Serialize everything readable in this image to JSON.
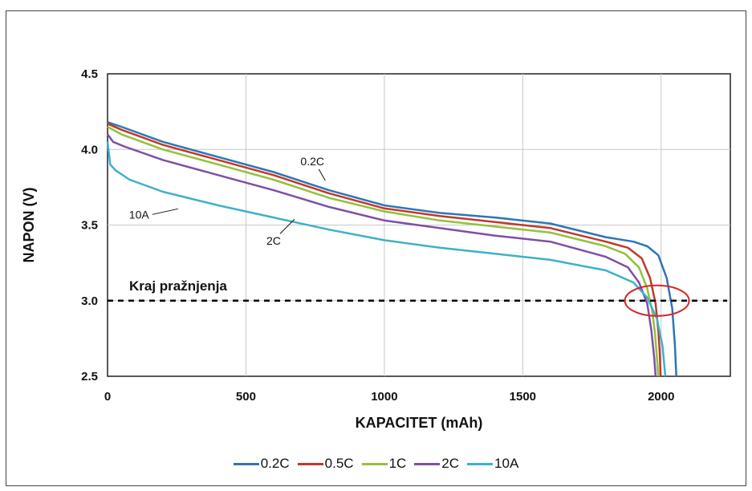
{
  "chart_data": {
    "type": "line",
    "xlabel": "KAPACITET (mAh)",
    "ylabel": "NAPON (V)",
    "xlim": [
      0,
      2250
    ],
    "ylim": [
      2.5,
      4.5
    ],
    "xticks": [
      "0",
      "500",
      "1000",
      "1500",
      "2000"
    ],
    "yticks": [
      "2.5",
      "3.0",
      "3.5",
      "4.0",
      "4.5"
    ],
    "grid": true,
    "legend_position": "bottom",
    "series": [
      {
        "name": "0.2C",
        "color": "#2e75b6",
        "x": [
          0,
          50,
          200,
          400,
          600,
          800,
          1000,
          1200,
          1400,
          1600,
          1800,
          1900,
          1950,
          1990,
          2020,
          2040,
          2050,
          2055
        ],
        "y": [
          4.18,
          4.15,
          4.05,
          3.95,
          3.85,
          3.73,
          3.63,
          3.58,
          3.55,
          3.51,
          3.42,
          3.39,
          3.36,
          3.3,
          3.15,
          2.95,
          2.7,
          2.5
        ]
      },
      {
        "name": "0.5C",
        "color": "#c0392b",
        "x": [
          0,
          50,
          200,
          400,
          600,
          800,
          1000,
          1200,
          1400,
          1600,
          1800,
          1880,
          1930,
          1960,
          1980,
          1990,
          1995,
          1998
        ],
        "y": [
          4.17,
          4.13,
          4.03,
          3.93,
          3.83,
          3.71,
          3.61,
          3.56,
          3.52,
          3.48,
          3.39,
          3.35,
          3.28,
          3.15,
          2.98,
          2.8,
          2.65,
          2.5
        ]
      },
      {
        "name": "1C",
        "color": "#92c13e",
        "x": [
          0,
          50,
          200,
          400,
          600,
          800,
          1000,
          1200,
          1400,
          1600,
          1800,
          1870,
          1920,
          1950,
          1968,
          1978,
          1985,
          1990
        ],
        "y": [
          4.15,
          4.1,
          4.0,
          3.9,
          3.8,
          3.68,
          3.59,
          3.53,
          3.49,
          3.45,
          3.36,
          3.31,
          3.22,
          3.08,
          2.93,
          2.78,
          2.62,
          2.5
        ]
      },
      {
        "name": "2C",
        "color": "#7f4fa6",
        "x": [
          0,
          20,
          60,
          200,
          400,
          600,
          800,
          1000,
          1200,
          1400,
          1600,
          1800,
          1880,
          1920,
          1950,
          1965,
          1975,
          1980
        ],
        "y": [
          4.1,
          4.05,
          4.02,
          3.93,
          3.83,
          3.73,
          3.62,
          3.53,
          3.48,
          3.43,
          3.39,
          3.29,
          3.22,
          3.12,
          2.98,
          2.8,
          2.62,
          2.5
        ]
      },
      {
        "name": "10A",
        "color": "#3fb0c9",
        "x": [
          0,
          10,
          30,
          80,
          200,
          400,
          600,
          800,
          1000,
          1200,
          1400,
          1600,
          1800,
          1900,
          1950,
          1985,
          2005,
          2015
        ],
        "y": [
          4.05,
          3.9,
          3.86,
          3.8,
          3.72,
          3.63,
          3.55,
          3.47,
          3.4,
          3.35,
          3.31,
          3.27,
          3.2,
          3.12,
          3.02,
          2.88,
          2.7,
          2.5
        ]
      }
    ],
    "reference_line": {
      "y": 3.0,
      "label": "Kraj pražnjenja"
    },
    "annotations": [
      {
        "text": "0.2C",
        "x": 740,
        "y": 3.88
      },
      {
        "text": "10A",
        "x": 150,
        "y": 3.57
      },
      {
        "text": "2C",
        "x": 600,
        "y": 3.39
      }
    ],
    "highlight_ellipse": {
      "cx": 1985,
      "cy": 3.0,
      "color": "#d62728"
    }
  }
}
